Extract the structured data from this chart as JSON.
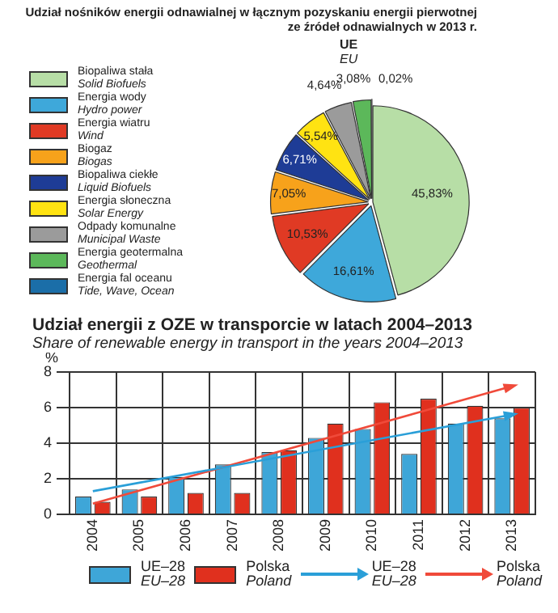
{
  "chart_data": [
    {
      "type": "pie",
      "title": "Udział nośników energii odnawialnej w łącznym pozyskaniu energii pierwotnej\nze źródeł odnawialnych w 2013 r.",
      "subtitle": "UE\nEU",
      "categories": [
        "Biopaliwa stała\nSolid Biofuels",
        "Energia wody\nHydro power",
        "Energia wiatru\nWind",
        "Biogaz\nBiogas",
        "Biopaliwa ciekłe\nLiquid Biofuels",
        "Energia słoneczna\nSolar Energy",
        "Odpady komunalne\nMunicipal Waste",
        "Energia geotermalna\nGeothermal",
        "Energia fal oceanu\nTide, Wave, Ocean"
      ],
      "values": [
        45.83,
        16.61,
        10.53,
        7.05,
        6.71,
        5.54,
        4.64,
        3.08,
        0.02
      ],
      "value_labels": [
        "45,83%",
        "16,61%",
        "10,53%",
        "7,05%",
        "6,71%",
        "5,54%",
        "4,64%",
        "3,08%",
        "0,02%"
      ],
      "colors": [
        "#b7dea6",
        "#3ea8da",
        "#e03a24",
        "#f7a21b",
        "#1e3c96",
        "#ffe312",
        "#9b9b9b",
        "#5cb85a",
        "#1b6ea8"
      ],
      "legend": "left"
    },
    {
      "type": "bar",
      "title": "Udział energii z OZE w transporcie w latach 2004–2013",
      "subtitle": "Share of renewable energy in transport in the years 2004–2013",
      "ylabel": "%",
      "categories": [
        "2004",
        "2005",
        "2006",
        "2007",
        "2008",
        "2009",
        "2010",
        "2011",
        "2012",
        "2013"
      ],
      "series": [
        {
          "name": "UE–28\nEU–28",
          "color": "#3ea6d8",
          "values": [
            1.0,
            1.4,
            2.1,
            2.8,
            3.5,
            4.3,
            4.8,
            3.4,
            5.1,
            5.4
          ]
        },
        {
          "name": "Polska\nPoland",
          "color": "#e0301e",
          "values": [
            0.7,
            1.0,
            1.2,
            1.2,
            3.6,
            5.1,
            6.3,
            6.5,
            6.1,
            6.0
          ]
        },
        {
          "name": "UE–28\nEU–28",
          "type": "line",
          "color": "#2a9fd8",
          "values": [
            1.3,
            null,
            null,
            null,
            null,
            null,
            null,
            null,
            null,
            5.6
          ]
        },
        {
          "name": "Polska\nPoland",
          "type": "line",
          "color": "#f04a3a",
          "values": [
            0.6,
            null,
            null,
            null,
            null,
            null,
            null,
            null,
            null,
            7.2
          ]
        }
      ],
      "ylim": [
        0,
        8
      ],
      "yticks": [
        0,
        2,
        4,
        6,
        8
      ],
      "grid": true,
      "legend": "bottom"
    }
  ]
}
